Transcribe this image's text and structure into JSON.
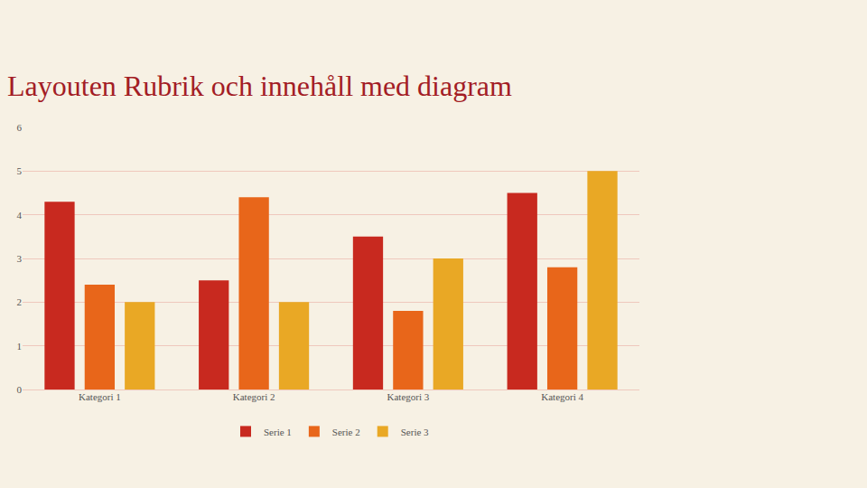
{
  "chart_data": {
    "type": "bar",
    "title": "Layouten Rubrik och innehåll med diagram",
    "categories": [
      "Kategori 1",
      "Kategori 2",
      "Kategori 3",
      "Kategori 4"
    ],
    "series": [
      {
        "name": "Serie 1",
        "color": "#c8291f",
        "values": [
          4.3,
          2.5,
          3.5,
          4.5
        ]
      },
      {
        "name": "Serie 2",
        "color": "#e8661a",
        "values": [
          2.4,
          4.4,
          1.8,
          2.8
        ]
      },
      {
        "name": "Serie 3",
        "color": "#e9a825",
        "values": [
          2.0,
          2.0,
          3.0,
          5.0
        ]
      }
    ],
    "ylim": [
      0,
      6
    ],
    "yticks": [
      0,
      1,
      2,
      3,
      4,
      5,
      6
    ],
    "grid": true,
    "legend": "bottom"
  }
}
